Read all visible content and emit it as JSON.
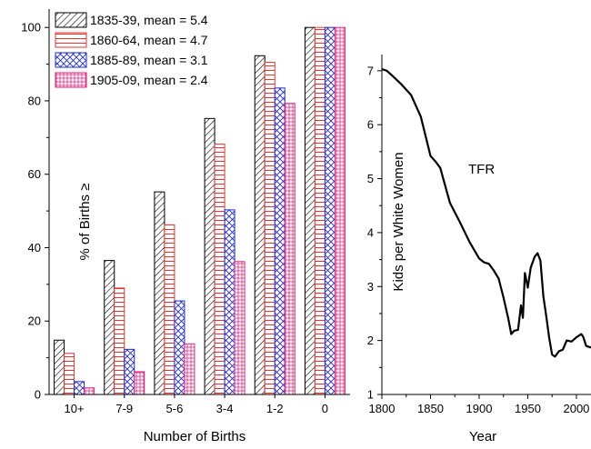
{
  "chart_data": [
    {
      "type": "bar",
      "xlabel": "Number of Births",
      "ylabel": "% of Births ≥",
      "ylim": [
        0,
        105
      ],
      "yticks": [
        0,
        20,
        40,
        60,
        80,
        100
      ],
      "categories": [
        "10+",
        "7-9",
        "5-6",
        "3-4",
        "1-2",
        "0"
      ],
      "legend_position": "top-left",
      "grid": false,
      "series": [
        {
          "name": "1835-39, mean = 5.4",
          "color": "#000000",
          "pattern": "diagonal-hatch",
          "values": [
            14.8,
            36.5,
            55.2,
            75.2,
            92.3,
            100
          ]
        },
        {
          "name": "1860-64, mean = 4.7",
          "color": "#e8332e",
          "pattern": "horizontal-lines",
          "values": [
            11.2,
            29.0,
            46.2,
            68.2,
            90.5,
            100
          ]
        },
        {
          "name": "1885-89, mean = 3.1",
          "color": "#1f2bd6",
          "pattern": "crosshatch",
          "values": [
            3.5,
            12.3,
            25.5,
            50.3,
            83.5,
            100
          ]
        },
        {
          "name": "1905-09, mean = 2.4",
          "color": "#e0207a",
          "pattern": "grid",
          "values": [
            1.8,
            6.2,
            13.8,
            36.2,
            79.3,
            100
          ]
        }
      ]
    },
    {
      "type": "line",
      "xlabel": "Year",
      "ylabel": "Kids per White Women",
      "xlim": [
        1800,
        2015
      ],
      "ylim": [
        1,
        7.3
      ],
      "xticks": [
        1800,
        1850,
        1900,
        1950,
        2000
      ],
      "yticks": [
        1,
        2,
        3,
        4,
        5,
        6,
        7
      ],
      "annotation": "TFR",
      "grid": false,
      "series": [
        {
          "color": "#000000",
          "x": [
            1800,
            1805,
            1810,
            1820,
            1830,
            1840,
            1850,
            1855,
            1860,
            1870,
            1880,
            1890,
            1900,
            1905,
            1910,
            1915,
            1920,
            1925,
            1930,
            1933,
            1936,
            1940,
            1943,
            1945,
            1947,
            1950,
            1953,
            1957,
            1960,
            1963,
            1966,
            1969,
            1972,
            1975,
            1978,
            1982,
            1986,
            1990,
            1995,
            2000,
            2005,
            2007,
            2010,
            2015
          ],
          "y": [
            7.03,
            7.0,
            6.92,
            6.75,
            6.55,
            6.15,
            5.42,
            5.32,
            5.2,
            4.55,
            4.2,
            3.83,
            3.52,
            3.45,
            3.42,
            3.3,
            3.15,
            2.8,
            2.4,
            2.12,
            2.18,
            2.2,
            2.65,
            2.42,
            3.25,
            2.98,
            3.35,
            3.55,
            3.62,
            3.48,
            2.82,
            2.45,
            2.05,
            1.74,
            1.7,
            1.8,
            1.83,
            2.0,
            1.98,
            2.06,
            2.12,
            2.07,
            1.9,
            1.87
          ]
        }
      ]
    }
  ],
  "colors": {
    "background": "#ffffff",
    "axis": "#000000"
  }
}
